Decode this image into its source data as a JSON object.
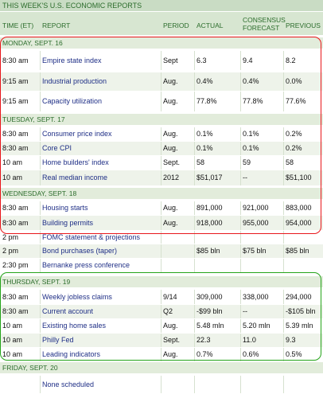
{
  "title": "THIS WEEK'S U.S. ECONOMIC REPORTS",
  "columns": {
    "time": "TIME (ET)",
    "report": "REPORT",
    "period": "PERIOD",
    "actual": "ACTUAL",
    "consensus_1": "CONSENSUS",
    "consensus_2": "FORECAST",
    "previous": "PREVIOUS"
  },
  "sections": [
    {
      "day": "MONDAY, SEPT. 16",
      "rows": [
        {
          "time": "8:30 am",
          "report": "Empire state index",
          "period": "Sept",
          "actual": "6.3",
          "consensus": "9.4",
          "previous": "8.2"
        },
        {
          "time": "9:15 am",
          "report": "Industrial production",
          "period": "Aug.",
          "actual": "0.4%",
          "consensus": "0.4%",
          "previous": "0.0%"
        },
        {
          "time": "9:15 am",
          "report": "Capacity utilization",
          "period": "Aug.",
          "actual": "77.8%",
          "consensus": "77.8%",
          "previous": "77.6%"
        }
      ]
    },
    {
      "day": "TUESDAY, SEPT. 17",
      "rows": [
        {
          "time": "8:30 am",
          "report": "Consumer price index",
          "period": "Aug.",
          "actual": "0.1%",
          "consensus": "0.1%",
          "previous": "0.2%"
        },
        {
          "time": "8:30 am",
          "report": "Core CPI",
          "period": "Aug.",
          "actual": "0.1%",
          "consensus": "0.1%",
          "previous": "0.2%"
        },
        {
          "time": "10 am",
          "report": "Home builders' index",
          "period": "Sept.",
          "actual": "58",
          "consensus": "59",
          "previous": "58"
        },
        {
          "time": "10 am",
          "report": "Real median income",
          "period": "2012",
          "actual": "$51,017",
          "consensus": "--",
          "previous": "$51,100"
        }
      ]
    },
    {
      "day": "WEDNESDAY, SEPT. 18",
      "rows": [
        {
          "time": "8:30 am",
          "report": "Housing starts",
          "period": "Aug.",
          "actual": "891,000",
          "consensus": "921,000",
          "previous": "883,000"
        },
        {
          "time": "8:30 am",
          "report": "Building permits",
          "period": "Aug.",
          "actual": "918,000",
          "consensus": "955,000",
          "previous": "954,000"
        },
        {
          "time": "2 pm",
          "report": "FOMC statement & projections",
          "period": "",
          "actual": "",
          "consensus": "",
          "previous": ""
        },
        {
          "time": "2 pm",
          "report": "Bond purchases (taper)",
          "period": "",
          "actual": "$85 bln",
          "consensus": "$75 bln",
          "previous": "$85 bln"
        },
        {
          "time": "2:30 pm",
          "report": "Bernanke press conference",
          "period": "",
          "actual": "",
          "consensus": "",
          "previous": ""
        }
      ]
    },
    {
      "day": "THURSDAY, SEPT. 19",
      "rows": [
        {
          "time": "8:30 am",
          "report": "Weekly jobless claims",
          "period": "9/14",
          "actual": "309,000",
          "consensus": "338,000",
          "previous": "294,000"
        },
        {
          "time": "8:30 am",
          "report": "Current account",
          "period": "Q2",
          "actual": "-$99 bln",
          "consensus": "--",
          "previous": "-$105 bln"
        },
        {
          "time": "10 am",
          "report": "Existing home sales",
          "period": "Aug.",
          "actual": "5.48 mln",
          "consensus": "5.20 mln",
          "previous": "5.39 mln"
        },
        {
          "time": "10 am",
          "report": "Philly Fed",
          "period": "Sept.",
          "actual": "22.3",
          "consensus": "11.0",
          "previous": "9.3"
        },
        {
          "time": "10 am",
          "report": "Leading indicators",
          "period": "Aug.",
          "actual": "0.7%",
          "consensus": "0.6%",
          "previous": "0.5%"
        }
      ]
    },
    {
      "day": "FRIDAY, SEPT. 20",
      "rows": [
        {
          "time": "",
          "report": "None scheduled",
          "period": "",
          "actual": "",
          "consensus": "",
          "previous": ""
        }
      ]
    }
  ],
  "highlight_colors": {
    "red_box": "#e8161b",
    "green_box": "#25a41a"
  }
}
